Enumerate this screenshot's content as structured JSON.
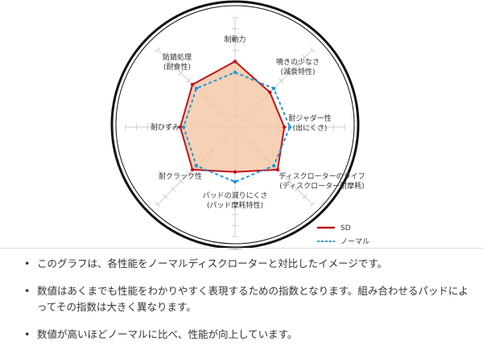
{
  "chart_data": {
    "type": "radar",
    "axes": [
      {
        "label": "制動力",
        "sub": ""
      },
      {
        "label": "鳴きの少なさ",
        "sub": "(減衰特性)"
      },
      {
        "label": "耐ジャダー性",
        "sub": "(出にくさ)"
      },
      {
        "label": "ディスクローターのライフ",
        "sub": "(ディスクローター耐摩耗)"
      },
      {
        "label": "パッドの減りにくさ",
        "sub": "(パッド摩耗特性)"
      },
      {
        "label": "耐クラック性",
        "sub": ""
      },
      {
        "label": "耐ひずみ",
        "sub": ""
      },
      {
        "label": "防錆処理",
        "sub": "(耐食性)"
      }
    ],
    "rmax": 10,
    "series": [
      {
        "name": "SD",
        "color": "#c0121c",
        "style": "solid",
        "fill": "#f6c9a8",
        "values": [
          6,
          4.5,
          4.5,
          5.5,
          4.1,
          5.5,
          5,
          5.5
        ]
      },
      {
        "name": "ノーマル",
        "color": "#1e9ad6",
        "style": "dashed",
        "values": [
          5,
          5,
          5,
          5,
          5,
          5,
          4.7,
          5
        ]
      }
    ],
    "legend": "bottom-right"
  },
  "notes": [
    "このグラフは、各性能をノーマルディスクローターと対比したイメージです。",
    "数値はあくまでも性能をわかりやすく表現するための指数となります。組み合わせるパッドによってその指数は大きく異なります。",
    "数値が高いほどノーマルに比べ、性能が向上しています。"
  ],
  "bullet": "•"
}
